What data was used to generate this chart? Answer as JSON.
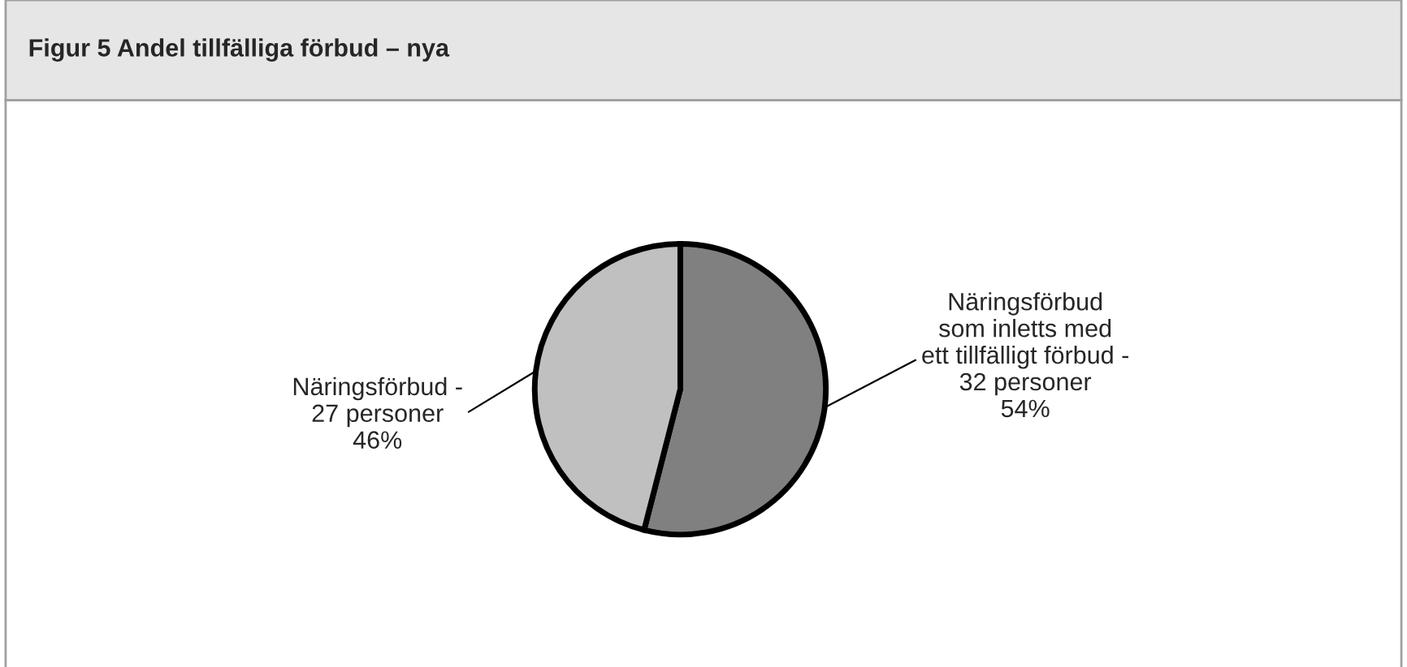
{
  "chart_data": {
    "type": "pie",
    "title": "Figur 5 Andel tillfälliga förbud – nya",
    "categories": [
      "Näringsförbud\nsom inletts med\nett tillfälligt förbud -\n32 personer",
      "Näringsförbud -\n27 personer"
    ],
    "values": [
      54,
      46
    ],
    "value_labels": [
      "54%",
      "46%"
    ],
    "colors": [
      "#808080",
      "#c0c0c0"
    ]
  }
}
